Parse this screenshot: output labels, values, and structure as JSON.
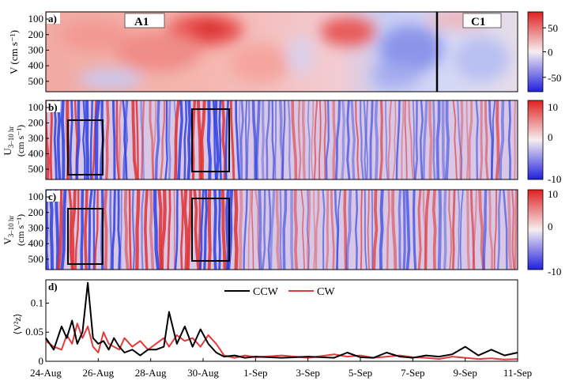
{
  "panels": {
    "a": {
      "label": "a)",
      "ylabel": "V  (cm s⁻¹)",
      "yticks": [
        "100",
        "200",
        "300",
        "400",
        "500"
      ],
      "colorbar": {
        "ticks": [
          "50",
          "0",
          "-50"
        ],
        "range": [
          -75,
          75
        ]
      }
    },
    "b": {
      "label": "b)",
      "ylabel_line1": "U",
      "ylabel_sub": "3–10 hr",
      "ylabel_line2": "(cm s⁻¹)",
      "yticks": [
        "100",
        "200",
        "300",
        "400",
        "500"
      ],
      "colorbar": {
        "ticks": [
          "10",
          "0",
          "-10"
        ],
        "range": [
          -10,
          10
        ]
      }
    },
    "c": {
      "label": "c)",
      "ylabel_line1": "V",
      "ylabel_sub": "3–10 hr",
      "ylabel_line2": "(cm s⁻¹)",
      "yticks": [
        "100",
        "200",
        "300",
        "400",
        "500"
      ],
      "colorbar": {
        "ticks": [
          "10",
          "0",
          "-10"
        ],
        "range": [
          -10,
          10
        ]
      }
    },
    "d": {
      "label": "d)",
      "ylabel": "⟨V²z⟩",
      "yticks": [
        "0",
        "0.05",
        "0.1"
      ]
    }
  },
  "annotations": {
    "a1": "A1",
    "c1": "C1"
  },
  "colors": {
    "ccw": "#000000",
    "cw": "#e03c3c",
    "red": "#e03030",
    "blue": "#2b3fe0"
  },
  "chart_data": {
    "type": "line",
    "xlabel": "",
    "ylabel": "⟨V²z⟩",
    "x_ticks": [
      "24-Aug",
      "26-Aug",
      "28-Aug",
      "30-Aug",
      "1-Sep",
      "3-Sep",
      "5-Sep",
      "7-Sep",
      "9-Sep",
      "11-Sep"
    ],
    "x_range_days": [
      0,
      18
    ],
    "ylim": [
      0,
      0.14
    ],
    "legend_position": "top-center",
    "x": [
      0,
      0.3,
      0.6,
      0.8,
      1.0,
      1.2,
      1.4,
      1.6,
      1.8,
      2.0,
      2.2,
      2.4,
      2.6,
      2.8,
      3.0,
      3.3,
      3.6,
      3.9,
      4.2,
      4.5,
      4.7,
      5.0,
      5.3,
      5.6,
      5.9,
      6.2,
      6.5,
      6.8,
      7.2,
      7.6,
      8.0,
      9.0,
      10.0,
      11.0,
      11.5,
      12.0,
      12.5,
      13.0,
      13.5,
      14.0,
      14.5,
      15.0,
      15.5,
      16.0,
      16.5,
      17.0,
      17.5,
      18.0
    ],
    "series": [
      {
        "name": "CCW",
        "values": [
          0.04,
          0.02,
          0.06,
          0.04,
          0.07,
          0.03,
          0.05,
          0.135,
          0.04,
          0.03,
          0.035,
          0.02,
          0.04,
          0.025,
          0.015,
          0.02,
          0.01,
          0.02,
          0.02,
          0.025,
          0.085,
          0.03,
          0.06,
          0.025,
          0.055,
          0.03,
          0.015,
          0.008,
          0.01,
          0.006,
          0.008,
          0.006,
          0.008,
          0.006,
          0.015,
          0.007,
          0.006,
          0.015,
          0.008,
          0.006,
          0.01,
          0.008,
          0.012,
          0.025,
          0.01,
          0.02,
          0.01,
          0.015
        ]
      },
      {
        "name": "CW",
        "values": [
          0.035,
          0.025,
          0.02,
          0.045,
          0.03,
          0.065,
          0.04,
          0.06,
          0.025,
          0.015,
          0.05,
          0.03,
          0.025,
          0.02,
          0.04,
          0.025,
          0.035,
          0.02,
          0.03,
          0.04,
          0.025,
          0.045,
          0.035,
          0.04,
          0.025,
          0.045,
          0.03,
          0.01,
          0.006,
          0.01,
          0.007,
          0.01,
          0.006,
          0.012,
          0.008,
          0.01,
          0.006,
          0.008,
          0.01,
          0.007,
          0.006,
          0.004,
          0.008,
          0.006,
          0.004,
          0.005,
          0.003,
          0.004
        ]
      }
    ]
  }
}
